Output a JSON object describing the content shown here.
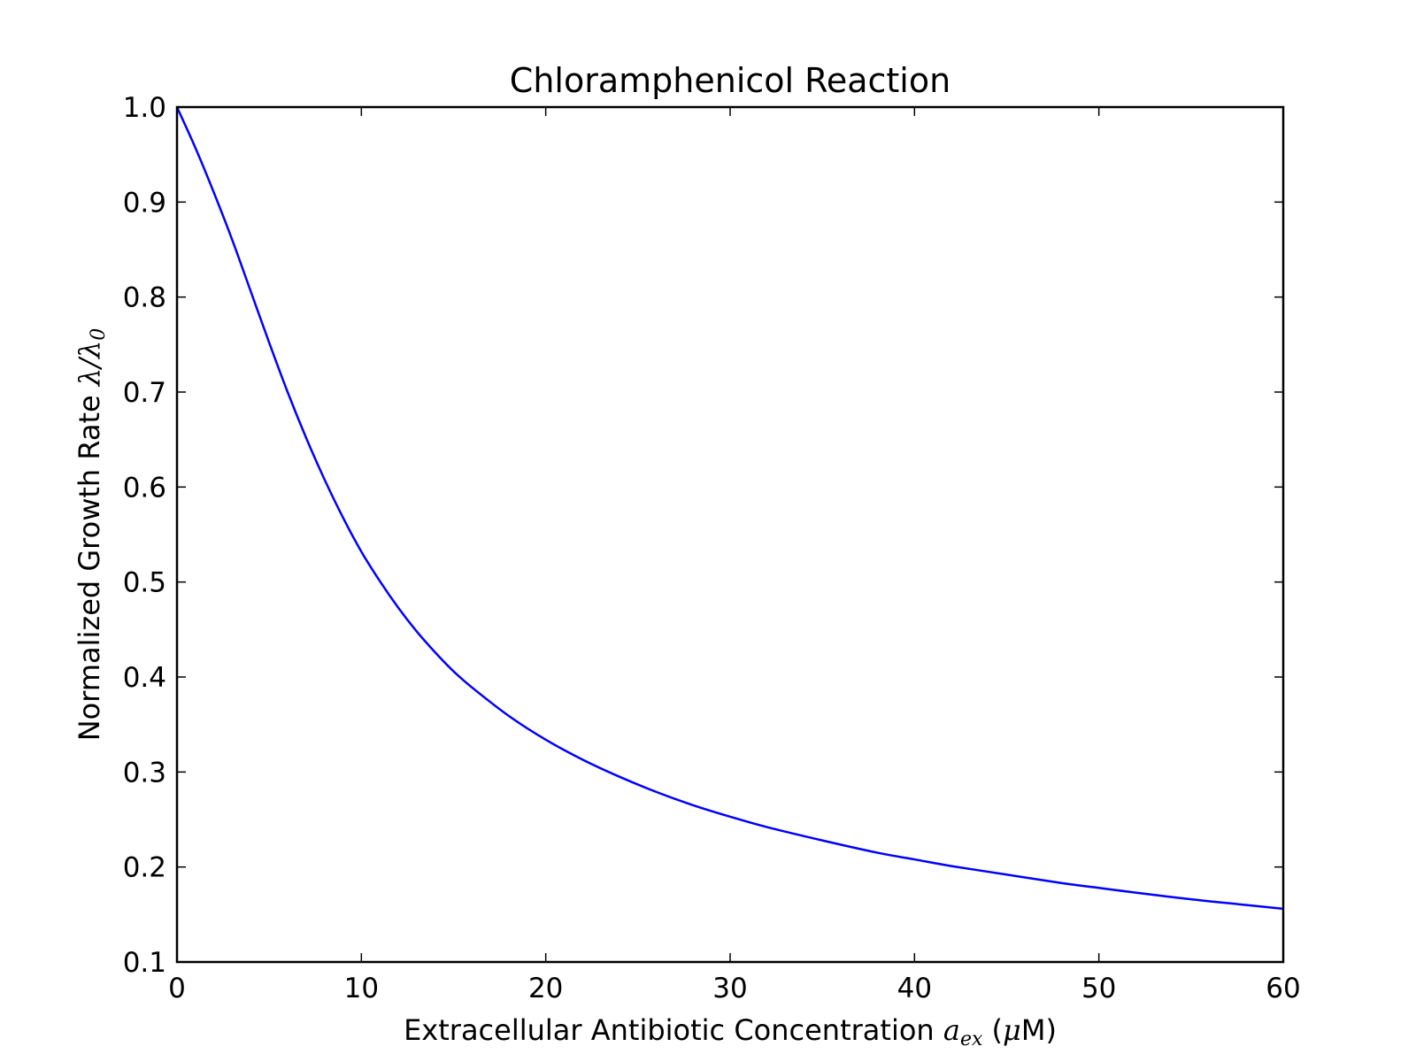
{
  "chart_data": {
    "type": "line",
    "title": "Chloramphenicol Reaction",
    "xlabel": {
      "text": "Extracellular Antibiotic Concentration ",
      "math_main": "a",
      "math_sub": "ex",
      "unit_open": " (",
      "unit_mu": "μ",
      "unit_close": "M)"
    },
    "ylabel": {
      "text": "Normalized Growth Rate ",
      "math_a": "λ",
      "math_sep": "/",
      "math_b": "λ",
      "math_b_sub": "0"
    },
    "xlim": [
      0,
      60
    ],
    "ylim": [
      0.1,
      1.0
    ],
    "xticks": [
      0,
      10,
      20,
      30,
      40,
      50,
      60
    ],
    "yticks": [
      0.1,
      0.2,
      0.3,
      0.4,
      0.5,
      0.6,
      0.7,
      0.8,
      0.9,
      1.0
    ],
    "xtick_labels": [
      "0",
      "10",
      "20",
      "30",
      "40",
      "50",
      "60"
    ],
    "ytick_labels": [
      "0.1",
      "0.2",
      "0.3",
      "0.4",
      "0.5",
      "0.6",
      "0.7",
      "0.8",
      "0.9",
      "1.0"
    ],
    "grid": false,
    "legend": "none",
    "series": [
      {
        "color": "#0000ff",
        "x": [
          0,
          1,
          2,
          3,
          4,
          5,
          6,
          7,
          8,
          9,
          10,
          11,
          12,
          13,
          14,
          15,
          16,
          18,
          20,
          22,
          24,
          26,
          28,
          30,
          32,
          35,
          38,
          40,
          42,
          45,
          48,
          50,
          52,
          55,
          58,
          60
        ],
        "y": [
          1.0,
          0.957,
          0.91,
          0.86,
          0.806,
          0.752,
          0.7,
          0.652,
          0.608,
          0.568,
          0.532,
          0.501,
          0.473,
          0.448,
          0.426,
          0.406,
          0.389,
          0.359,
          0.334,
          0.313,
          0.295,
          0.279,
          0.265,
          0.253,
          0.242,
          0.228,
          0.215,
          0.208,
          0.201,
          0.192,
          0.183,
          0.178,
          0.173,
          0.166,
          0.16,
          0.156
        ]
      }
    ]
  }
}
